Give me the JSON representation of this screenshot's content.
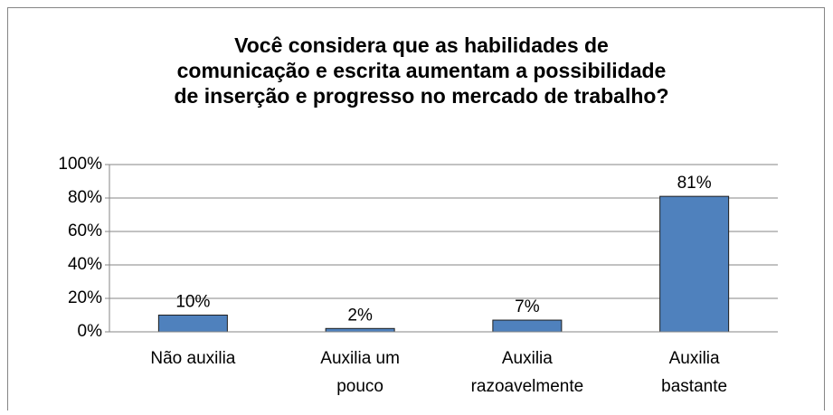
{
  "chart_data": {
    "type": "bar",
    "title": "Você considera que as habilidades de comunicação e escrita aumentam a possibilidade de inserção e progresso no mercado de trabalho?",
    "categories": [
      "Não auxilia",
      "Auxilia um pouco",
      "Auxilia razoavelmente",
      "Auxilia bastante"
    ],
    "values": [
      10,
      2,
      7,
      81
    ],
    "value_labels": [
      "10%",
      "2%",
      "7%",
      "81%"
    ],
    "color": "#4f81bd",
    "ylim": [
      0,
      100
    ],
    "yticks": [
      {
        "value": 0,
        "label": "0%"
      },
      {
        "value": 20,
        "label": "20%"
      },
      {
        "value": 40,
        "label": "40%"
      },
      {
        "value": 60,
        "label": "60%"
      },
      {
        "value": 80,
        "label": "80%"
      },
      {
        "value": 100,
        "label": "100%"
      }
    ],
    "grid": true
  }
}
